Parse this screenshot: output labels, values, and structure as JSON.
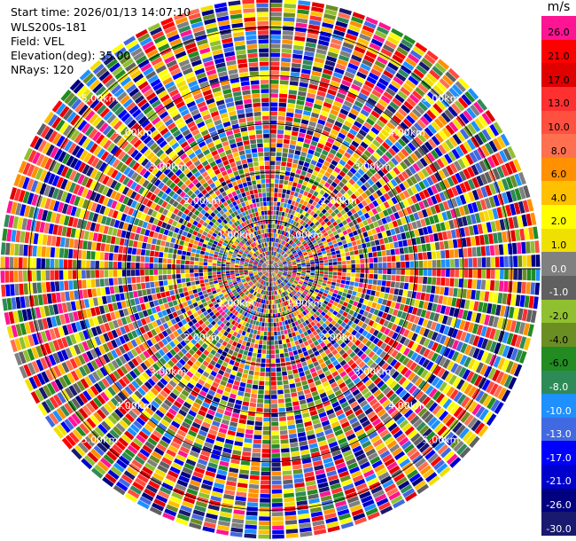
{
  "header": {
    "start_time": "Start time: 2026/01/13 14:07:10",
    "instrument": "WLS200s-181",
    "field": "Field: VEL",
    "elevation": "Elevation(deg): 35.00",
    "nrays": "NRays: 120"
  },
  "colorbar": {
    "unit": "m/s",
    "ticks": [
      "26.0",
      "21.0",
      "17.0",
      "13.0",
      "10.0",
      "8.0",
      "6.0",
      "4.0",
      "2.0",
      "1.0",
      "0.0",
      "-1.0",
      "-2.0",
      "-4.0",
      "-6.0",
      "-8.0",
      "-10.0",
      "-13.0",
      "-17.0",
      "-21.0",
      "-26.0",
      "-30.0"
    ],
    "colors": [
      "#ff1493",
      "#ff0000",
      "#e00000",
      "#ff3030",
      "#ff5040",
      "#ff7050",
      "#ff9000",
      "#ffc000",
      "#ffff00",
      "#f0e000",
      "#808080",
      "#606060",
      "#90c030",
      "#6b8e23",
      "#228b22",
      "#2e8b57",
      "#1e90ff",
      "#4169e1",
      "#0000ff",
      "#0000cd",
      "#000080",
      "#191970"
    ]
  },
  "chart_data": {
    "type": "heatmap",
    "projection": "polar PPI",
    "field": "VEL",
    "units": "m/s",
    "nrays": 120,
    "elevation_deg": 35.0,
    "range_rings_km": [
      1.0,
      2.0,
      3.0,
      4.0,
      5.0
    ],
    "range_ring_labels": [
      "1.00km",
      "2.00km",
      "3.00km",
      "4.00km",
      "5.00km"
    ],
    "value_range": [
      -30.0,
      30.0
    ],
    "grid": true
  }
}
